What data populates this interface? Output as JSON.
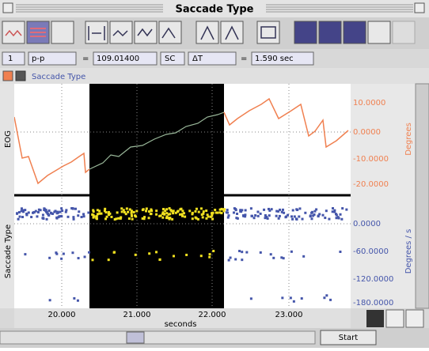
{
  "window": {
    "title": "Saccade Type"
  },
  "fields": {
    "channel": "1",
    "measure": "p-p",
    "eq1": "=",
    "value": "109.01400",
    "sc": "SC",
    "delta": "ΔT",
    "eq2": "=",
    "interval": "1.590 sec"
  },
  "channel_bar": {
    "label": "Saccade Type"
  },
  "panels": [
    {
      "label": "EOG",
      "unit": "Degrees",
      "ticks": [
        "10.0000",
        "0.0000",
        "-10.0000",
        "-20.0000"
      ]
    },
    {
      "label": "Saccade Type",
      "unit": "Degrees / s",
      "ticks": [
        "0.0000",
        "-60.0000",
        "-120.0000",
        "-180.0000"
      ]
    }
  ],
  "x_axis": {
    "ticks": [
      "20.000",
      "21.000",
      "22.000",
      "23.000"
    ],
    "label": "seconds"
  },
  "footer": {
    "button": "Start"
  }
}
